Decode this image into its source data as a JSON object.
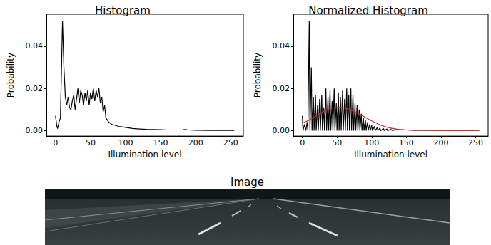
{
  "chart_data": [
    {
      "type": "line",
      "title": "Histogram",
      "xlabel": "Illumination level",
      "ylabel": "Probability",
      "xlim": [
        -13,
        268
      ],
      "xticks": [
        0,
        50,
        100,
        150,
        200,
        250
      ],
      "ylim": [
        -0.0026,
        0.0552
      ],
      "yticks": [
        {
          "value": 0,
          "label": "0.00"
        },
        {
          "value": 0.02,
          "label": "0.02"
        },
        {
          "value": 0.04,
          "label": "0.04"
        }
      ],
      "grid": false,
      "series": [
        {
          "color": "#000000",
          "x": [
            0,
            2,
            3,
            5,
            7,
            10,
            12,
            14,
            16,
            18,
            20,
            22,
            24,
            26,
            28,
            30,
            32,
            34,
            36,
            38,
            40,
            42,
            44,
            46,
            48,
            50,
            52,
            54,
            56,
            58,
            60,
            62,
            64,
            66,
            68,
            70,
            72,
            74,
            76,
            80,
            85,
            90,
            95,
            100,
            110,
            120,
            130,
            140,
            150,
            160,
            180,
            185,
            190,
            200,
            220,
            240,
            255
          ],
          "values": [
            0.007,
            0.002,
            0.001,
            0.004,
            0.006,
            0.052,
            0.03,
            0.016,
            0.012,
            0.016,
            0.011,
            0.01,
            0.014,
            0.017,
            0.01,
            0.015,
            0.02,
            0.013,
            0.019,
            0.017,
            0.012,
            0.018,
            0.014,
            0.019,
            0.012,
            0.018,
            0.015,
            0.02,
            0.014,
            0.019,
            0.016,
            0.02,
            0.013,
            0.016,
            0.009,
            0.012,
            0.006,
            0.005,
            0.004,
            0.003,
            0.0025,
            0.002,
            0.0018,
            0.0015,
            0.001,
            0.0008,
            0.0006,
            0.0005,
            0.0004,
            0.0003,
            0.0003,
            0.0005,
            0.0003,
            0.0002,
            0.0001,
            0.0001,
            0.0001
          ]
        }
      ]
    },
    {
      "type": "line",
      "title": "Normalized Histogram",
      "xlabel": "Illumination level",
      "ylabel": "Probability",
      "xlim": [
        -13,
        268
      ],
      "xticks": [
        0,
        50,
        100,
        150,
        200,
        250
      ],
      "ylim": [
        -0.0026,
        0.0552
      ],
      "yticks": [
        {
          "value": 0,
          "label": "0.00"
        },
        {
          "value": 0.02,
          "label": "0.02"
        },
        {
          "value": 0.04,
          "label": "0.04"
        }
      ],
      "grid": false,
      "series": [
        {
          "color": "#000000",
          "x": [
            0,
            1,
            3,
            5,
            7,
            8,
            10,
            11,
            13,
            14,
            16,
            17,
            19,
            20,
            22,
            23,
            25,
            26,
            28,
            29,
            31,
            32,
            34,
            35,
            37,
            38,
            40,
            41,
            43,
            44,
            46,
            47,
            49,
            50,
            52,
            53,
            55,
            56,
            58,
            59,
            61,
            62,
            64,
            65,
            67,
            68,
            70,
            71,
            73,
            74,
            76,
            77,
            79,
            80,
            82,
            83,
            85,
            86,
            88,
            89,
            91,
            92,
            94,
            95,
            97,
            98,
            100,
            101,
            104,
            105,
            108,
            109,
            112,
            113,
            117,
            118,
            122,
            123,
            128,
            130,
            135,
            140,
            150,
            170,
            200,
            255
          ],
          "values": [
            0.007,
            0,
            0.003,
            0,
            0.004,
            0,
            0.052,
            0,
            0.03,
            0,
            0.016,
            0,
            0.017,
            0,
            0.012,
            0,
            0.015,
            0,
            0.017,
            0,
            0.011,
            0,
            0.02,
            0,
            0.016,
            0,
            0.019,
            0,
            0.014,
            0,
            0.02,
            0,
            0.013,
            0,
            0.018,
            0,
            0.016,
            0,
            0.019,
            0,
            0.015,
            0,
            0.02,
            0,
            0.017,
            0,
            0.02,
            0,
            0.017,
            0,
            0.013,
            0,
            0.012,
            0,
            0.01,
            0,
            0.008,
            0,
            0.006,
            0,
            0.005,
            0,
            0.004,
            0,
            0.003,
            0,
            0.0025,
            0,
            0.002,
            0,
            0.0015,
            0,
            0.0012,
            0,
            0.001,
            0,
            0.0008,
            0,
            0.0006,
            0,
            0.0005,
            0.0004,
            0.0003,
            0.0002,
            0.0002,
            0.0001
          ]
        },
        {
          "color": "#d62728",
          "x": [
            0,
            10,
            20,
            30,
            40,
            50,
            60,
            70,
            80,
            90,
            100,
            110,
            120,
            130,
            140,
            150,
            160,
            180,
            200,
            255
          ],
          "values": [
            0.0035,
            0.005,
            0.007,
            0.009,
            0.0105,
            0.011,
            0.0108,
            0.0098,
            0.0082,
            0.0064,
            0.0046,
            0.003,
            0.0018,
            0.001,
            0.0005,
            0.0003,
            0.0001,
            5e-05,
            0,
            0
          ]
        }
      ]
    }
  ],
  "image": {
    "title": "Image"
  }
}
